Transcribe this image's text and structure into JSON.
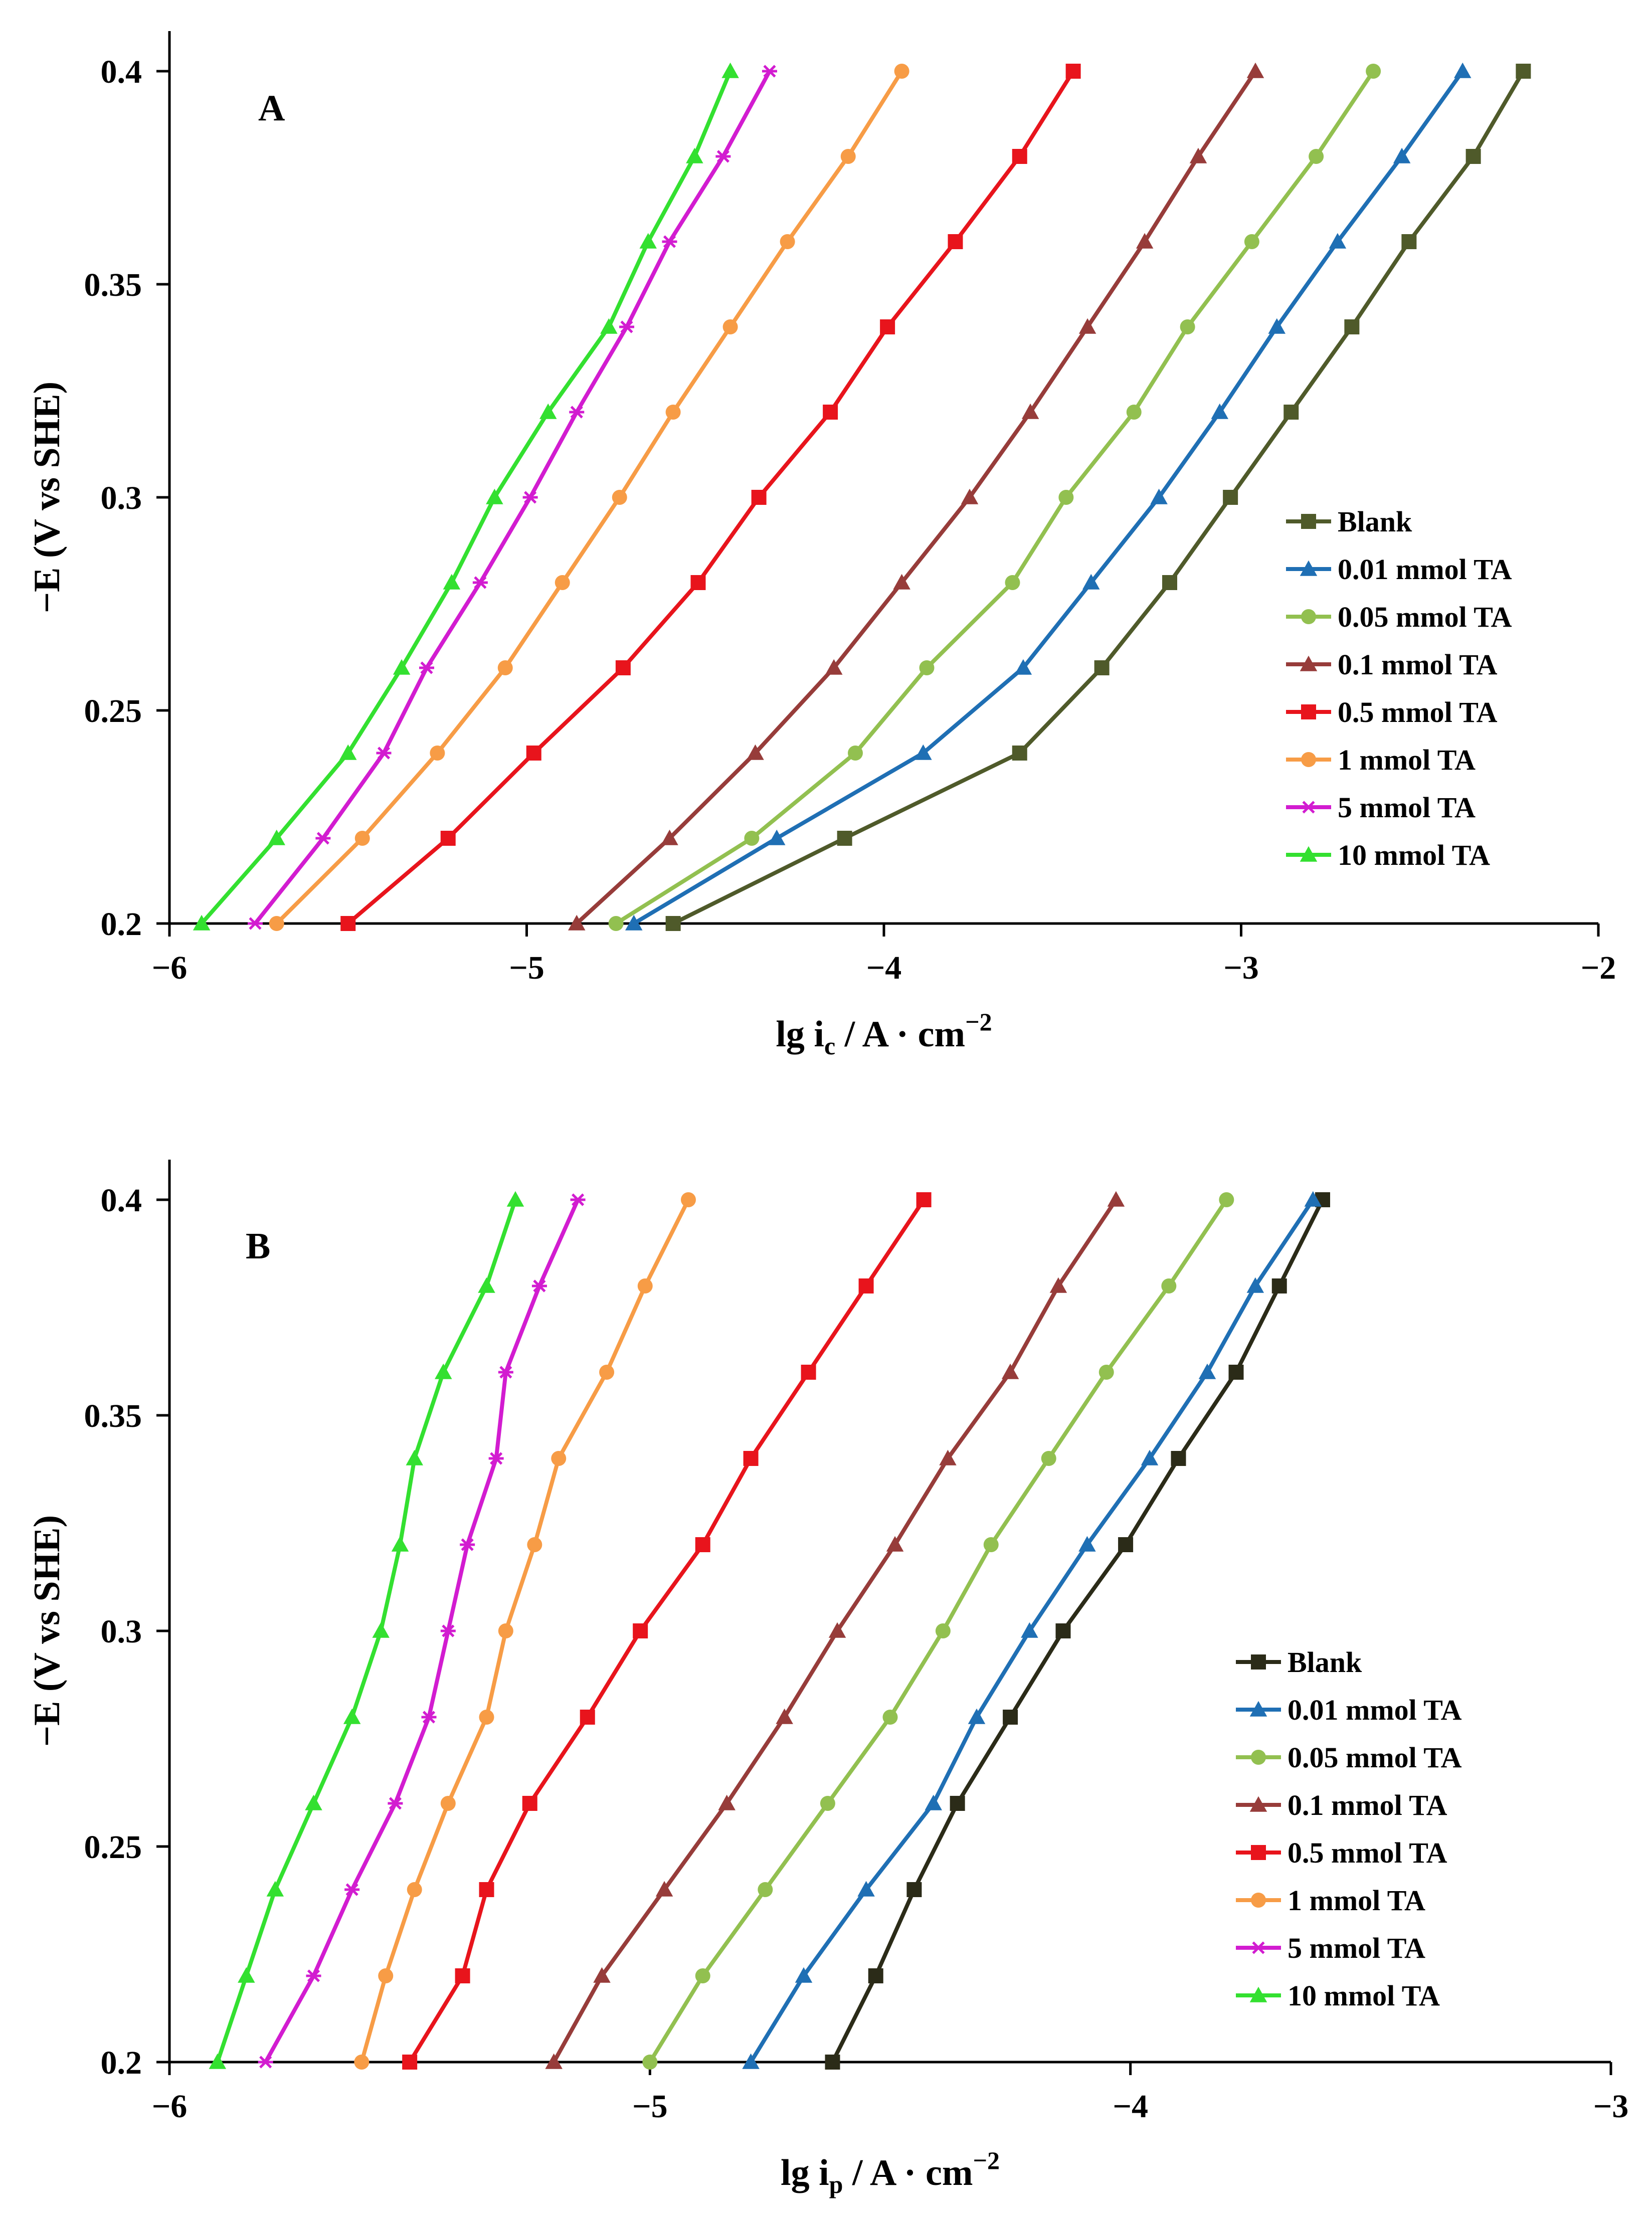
{
  "chart_data": [
    {
      "panel": "A",
      "type": "line",
      "ylabel": "−E (V vs SHE)",
      "xlabel": {
        "main": "lg i",
        "sub": "c",
        "unit": " / A · cm",
        "sup": "−2"
      },
      "xlim": [
        -6,
        -2
      ],
      "ylim": [
        0.2,
        0.4
      ],
      "xticks": [
        -6,
        -5,
        -4,
        -3,
        -2
      ],
      "xtick_labels": [
        "−6",
        "−5",
        "−4",
        "−3",
        "−2"
      ],
      "yticks": [
        0.2,
        0.25,
        0.3,
        0.35,
        0.4
      ],
      "ytick_labels": [
        "0.2",
        "0.25",
        "0.3",
        "0.35",
        "0.4"
      ],
      "grid": false,
      "legend_position": "right",
      "y": [
        0.2,
        0.22,
        0.24,
        0.26,
        0.28,
        0.3,
        0.32,
        0.34,
        0.36,
        0.38,
        0.4
      ],
      "series": [
        {
          "name": "Blank",
          "color": "#4f5a2a",
          "marker": "square",
          "x": [
            -4.59,
            -4.11,
            -3.62,
            -3.39,
            -3.2,
            -3.03,
            -2.86,
            -2.69,
            -2.53,
            -2.35,
            -2.21
          ]
        },
        {
          "name": "0.01 mmol TA",
          "color": "#1f6fb4",
          "marker": "triangle",
          "x": [
            -4.7,
            -4.3,
            -3.89,
            -3.61,
            -3.42,
            -3.23,
            -3.06,
            -2.9,
            -2.73,
            -2.55,
            -2.38
          ]
        },
        {
          "name": "0.05 mmol TA",
          "color": "#92c050",
          "marker": "circle",
          "x": [
            -4.75,
            -4.37,
            -4.08,
            -3.88,
            -3.64,
            -3.49,
            -3.3,
            -3.15,
            -2.97,
            -2.79,
            -2.63
          ]
        },
        {
          "name": "0.1 mmol TA",
          "color": "#973c3a",
          "marker": "triangle",
          "x": [
            -4.86,
            -4.6,
            -4.36,
            -4.14,
            -3.95,
            -3.76,
            -3.59,
            -3.43,
            -3.27,
            -3.12,
            -2.96
          ]
        },
        {
          "name": "0.5 mmol TA",
          "color": "#e8141c",
          "marker": "square",
          "x": [
            -5.5,
            -5.22,
            -4.98,
            -4.73,
            -4.52,
            -4.35,
            -4.15,
            -3.99,
            -3.8,
            -3.62,
            -3.47
          ]
        },
        {
          "name": "1 mmol TA",
          "color": "#f79c46",
          "marker": "circle",
          "x": [
            -5.7,
            -5.46,
            -5.25,
            -5.06,
            -4.9,
            -4.74,
            -4.59,
            -4.43,
            -4.27,
            -4.1,
            -3.95
          ]
        },
        {
          "name": "5 mmol TA",
          "color": "#d21cd0",
          "marker": "star",
          "x": [
            -5.76,
            -5.57,
            -5.4,
            -5.28,
            -5.13,
            -4.99,
            -4.86,
            -4.72,
            -4.6,
            -4.45,
            -4.32
          ]
        },
        {
          "name": "10 mmol TA",
          "color": "#33e030",
          "marker": "triangle",
          "x": [
            -5.91,
            -5.7,
            -5.5,
            -5.35,
            -5.21,
            -5.09,
            -4.94,
            -4.77,
            -4.66,
            -4.53,
            -4.43
          ]
        }
      ]
    },
    {
      "panel": "B",
      "type": "line",
      "ylabel": "−E (V vs SHE)",
      "xlabel": {
        "main": "lg i",
        "sub": "p",
        "unit": " / A · cm",
        "sup": "−2"
      },
      "xlim": [
        -6,
        -3
      ],
      "ylim": [
        0.2,
        0.4
      ],
      "xticks": [
        -6,
        -5,
        -4,
        -3
      ],
      "xtick_labels": [
        "−6",
        "−5",
        "−4",
        "−3"
      ],
      "yticks": [
        0.2,
        0.25,
        0.3,
        0.35,
        0.4
      ],
      "ytick_labels": [
        "0.2",
        "0.25",
        "0.3",
        "0.35",
        "0.4"
      ],
      "grid": false,
      "legend_position": "right",
      "y": [
        0.2,
        0.22,
        0.24,
        0.26,
        0.28,
        0.3,
        0.32,
        0.34,
        0.36,
        0.38,
        0.4
      ],
      "series": [
        {
          "name": "Blank",
          "color": "#2b2b18",
          "marker": "square",
          "x": [
            -4.62,
            -4.53,
            -4.45,
            -4.36,
            -4.25,
            -4.14,
            -4.01,
            -3.9,
            -3.78,
            -3.69,
            -3.6
          ]
        },
        {
          "name": "0.01 mmol TA",
          "color": "#1f6fb4",
          "marker": "triangle",
          "x": [
            -4.79,
            -4.68,
            -4.55,
            -4.41,
            -4.32,
            -4.21,
            -4.09,
            -3.96,
            -3.84,
            -3.74,
            -3.62
          ]
        },
        {
          "name": "0.05 mmol TA",
          "color": "#92c050",
          "marker": "circle",
          "x": [
            -5,
            -4.89,
            -4.76,
            -4.63,
            -4.5,
            -4.39,
            -4.29,
            -4.17,
            -4.05,
            -3.92,
            -3.8
          ]
        },
        {
          "name": "0.1 mmol TA",
          "color": "#973c3a",
          "marker": "triangle",
          "x": [
            -5.2,
            -5.1,
            -4.97,
            -4.84,
            -4.72,
            -4.61,
            -4.49,
            -4.38,
            -4.25,
            -4.15,
            -4.03
          ]
        },
        {
          "name": "0.5 mmol TA",
          "color": "#e8141c",
          "marker": "square",
          "x": [
            -5.5,
            -5.39,
            -5.34,
            -5.25,
            -5.13,
            -5.02,
            -4.89,
            -4.79,
            -4.67,
            -4.55,
            -4.43
          ]
        },
        {
          "name": "1 mmol TA",
          "color": "#f79c46",
          "marker": "circle",
          "x": [
            -5.6,
            -5.55,
            -5.49,
            -5.42,
            -5.34,
            -5.3,
            -5.24,
            -5.19,
            -5.09,
            -5.01,
            -4.92
          ]
        },
        {
          "name": "5 mmol TA",
          "color": "#d21cd0",
          "marker": "star",
          "x": [
            -5.8,
            -5.7,
            -5.62,
            -5.53,
            -5.46,
            -5.42,
            -5.38,
            -5.32,
            -5.3,
            -5.23,
            -5.15
          ]
        },
        {
          "name": "10 mmol TA",
          "color": "#33e030",
          "marker": "triangle",
          "x": [
            -5.9,
            -5.84,
            -5.78,
            -5.7,
            -5.62,
            -5.56,
            -5.52,
            -5.49,
            -5.43,
            -5.34,
            -5.28
          ]
        }
      ]
    }
  ]
}
